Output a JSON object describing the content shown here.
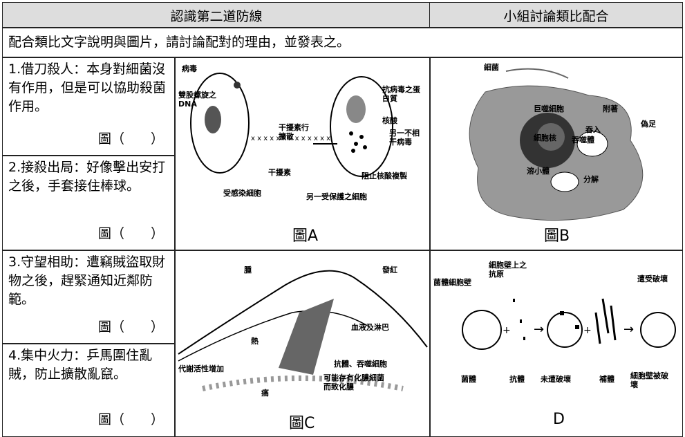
{
  "header": {
    "title": "認識第二道防線",
    "right_title": "小組討論類比配合"
  },
  "instruction": "配合類比文字說明與圖片，請討論配對的理由，並發表之。",
  "items": [
    {
      "text": "1.借刀殺人：本身對細菌沒有作用，但是可以協助殺菌作用。",
      "answer": "圖（　　）"
    },
    {
      "text": "2.接殺出局：好像擊出安打之後，手套接住棒球。",
      "answer": "圖（　　）"
    },
    {
      "text": "3.守望相助：遭竊賊盜取財物之後，趕緊通知近鄰防範。",
      "answer": "圖（　　）"
    },
    {
      "text": "4.集中火力：乒馬圍住亂賊，防止擴散亂竄。",
      "answer": "圖（　　）"
    }
  ],
  "figures": [
    {
      "caption": "圖A",
      "labels": [
        "病毒",
        "雙股螺旋之DNA",
        "干擾素行擴散",
        "干擾素",
        "受感染細胞",
        "抗病毒之蛋白質",
        "核酸",
        "另一不相干病毒",
        "阻止核酸複製",
        "另一受保護之細胞"
      ]
    },
    {
      "caption": "圖B",
      "labels": [
        "細菌",
        "附著",
        "巨噬細胞",
        "偽足",
        "細胞核",
        "吞入",
        "吞噬體",
        "溶小體",
        "分解"
      ]
    },
    {
      "caption": "圖C",
      "labels": [
        "腫",
        "發紅",
        "熱",
        "血液及淋巴",
        "代謝活性增加",
        "痛",
        "抗體、吞噬細胞",
        "可能存有化膿細菌而致化膿"
      ]
    },
    {
      "caption": "D",
      "labels": [
        "菌體細胞壁",
        "細胞壁上之抗原",
        "遭受破壞",
        "菌體",
        "抗體",
        "未遭破壞",
        "補體",
        "細胞壁被破壞"
      ]
    }
  ]
}
